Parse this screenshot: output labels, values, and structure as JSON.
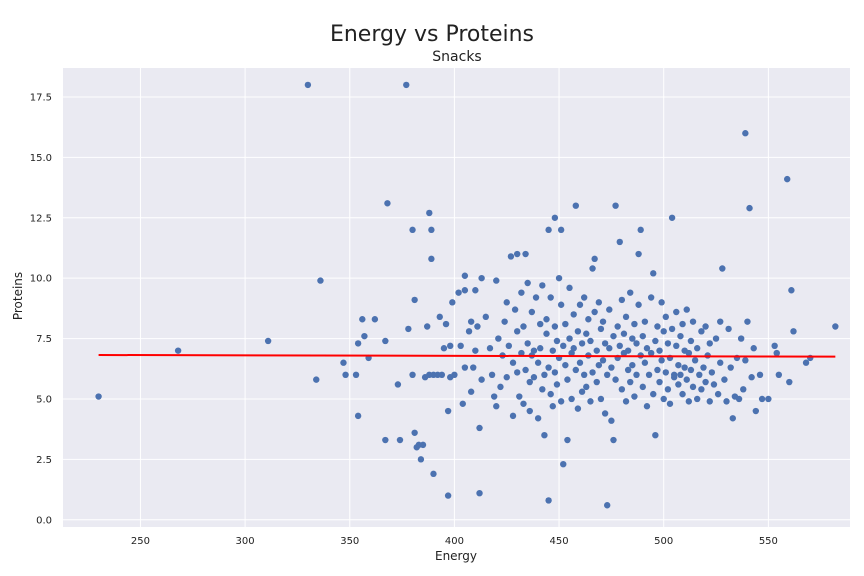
{
  "chart_data": {
    "type": "scatter",
    "title": "Energy vs Proteins",
    "subtitle": "Snacks",
    "xlabel": "Energy",
    "ylabel": "Proteins",
    "xlim": [
      213,
      589
    ],
    "ylim": [
      -0.3,
      18.7
    ],
    "xticks": [
      250,
      300,
      350,
      400,
      450,
      500,
      550
    ],
    "yticks": [
      0.0,
      2.5,
      5.0,
      7.5,
      10.0,
      12.5,
      15.0,
      17.5
    ],
    "xtick_labels": [
      "250",
      "300",
      "350",
      "400",
      "450",
      "500",
      "550"
    ],
    "ytick_labels": [
      "0.0",
      "2.5",
      "5.0",
      "7.5",
      "10.0",
      "12.5",
      "15.0",
      "17.5"
    ],
    "grid": true,
    "background": "#EAEAF2",
    "point_color": "#4C72B0",
    "line_color": "#FF0000",
    "trend_line": {
      "x": [
        230,
        582
      ],
      "y": [
        6.82,
        6.75
      ]
    },
    "points": [
      [
        230,
        5.1
      ],
      [
        268,
        7.0
      ],
      [
        311,
        7.4
      ],
      [
        330,
        18.0
      ],
      [
        334,
        5.8
      ],
      [
        336,
        9.9
      ],
      [
        347,
        6.5
      ],
      [
        348,
        6.0
      ],
      [
        353,
        6.0
      ],
      [
        354,
        4.3
      ],
      [
        354,
        7.3
      ],
      [
        356,
        8.3
      ],
      [
        357,
        7.6
      ],
      [
        359,
        6.7
      ],
      [
        362,
        8.3
      ],
      [
        367,
        7.4
      ],
      [
        367,
        3.3
      ],
      [
        368,
        13.1
      ],
      [
        373,
        5.6
      ],
      [
        374,
        3.3
      ],
      [
        377,
        18.0
      ],
      [
        378,
        7.9
      ],
      [
        380,
        12.0
      ],
      [
        380,
        6.0
      ],
      [
        381,
        9.1
      ],
      [
        381,
        3.6
      ],
      [
        382,
        3.0
      ],
      [
        383,
        3.1
      ],
      [
        384,
        2.5
      ],
      [
        385,
        3.1
      ],
      [
        386,
        5.9
      ],
      [
        387,
        8.0
      ],
      [
        388,
        12.7
      ],
      [
        388,
        6.0
      ],
      [
        389,
        12.0
      ],
      [
        389,
        10.8
      ],
      [
        390,
        1.9
      ],
      [
        390,
        6.0
      ],
      [
        392,
        6.0
      ],
      [
        393,
        8.4
      ],
      [
        394,
        6.0
      ],
      [
        395,
        7.1
      ],
      [
        396,
        8.1
      ],
      [
        397,
        1.0
      ],
      [
        397,
        4.5
      ],
      [
        398,
        5.9
      ],
      [
        398,
        7.2
      ],
      [
        399,
        9.0
      ],
      [
        400,
        6.0
      ],
      [
        402,
        9.4
      ],
      [
        403,
        7.2
      ],
      [
        404,
        4.8
      ],
      [
        405,
        10.1
      ],
      [
        405,
        6.3
      ],
      [
        405,
        9.5
      ],
      [
        407,
        7.8
      ],
      [
        408,
        8.2
      ],
      [
        408,
        5.3
      ],
      [
        409,
        6.3
      ],
      [
        410,
        7.0
      ],
      [
        410,
        9.5
      ],
      [
        411,
        8.0
      ],
      [
        412,
        1.1
      ],
      [
        412,
        3.8
      ],
      [
        413,
        10.0
      ],
      [
        413,
        5.8
      ],
      [
        415,
        8.4
      ],
      [
        417,
        7.1
      ],
      [
        418,
        6.0
      ],
      [
        419,
        5.1
      ],
      [
        420,
        9.9
      ],
      [
        420,
        4.7
      ],
      [
        421,
        7.5
      ],
      [
        422,
        5.5
      ],
      [
        423,
        6.8
      ],
      [
        424,
        8.2
      ],
      [
        425,
        9.0
      ],
      [
        425,
        5.9
      ],
      [
        426,
        7.2
      ],
      [
        427,
        10.9
      ],
      [
        428,
        6.5
      ],
      [
        428,
        4.3
      ],
      [
        429,
        8.7
      ],
      [
        430,
        11.0
      ],
      [
        430,
        6.1
      ],
      [
        430,
        7.8
      ],
      [
        431,
        5.1
      ],
      [
        432,
        9.4
      ],
      [
        432,
        6.9
      ],
      [
        433,
        4.8
      ],
      [
        433,
        8.0
      ],
      [
        434,
        11.0
      ],
      [
        434,
        6.2
      ],
      [
        435,
        7.3
      ],
      [
        435,
        9.8
      ],
      [
        436,
        5.7
      ],
      [
        436,
        4.5
      ],
      [
        437,
        6.8
      ],
      [
        437,
        8.6
      ],
      [
        438,
        7.0
      ],
      [
        438,
        5.9
      ],
      [
        439,
        9.2
      ],
      [
        440,
        6.5
      ],
      [
        440,
        4.2
      ],
      [
        441,
        8.1
      ],
      [
        441,
        7.1
      ],
      [
        442,
        5.4
      ],
      [
        442,
        9.7
      ],
      [
        443,
        6.0
      ],
      [
        443,
        3.5
      ],
      [
        444,
        7.7
      ],
      [
        444,
        8.3
      ],
      [
        445,
        12.0
      ],
      [
        445,
        6.3
      ],
      [
        445,
        0.8
      ],
      [
        446,
        5.2
      ],
      [
        446,
        9.2
      ],
      [
        447,
        7.0
      ],
      [
        447,
        4.7
      ],
      [
        448,
        8.0
      ],
      [
        448,
        6.1
      ],
      [
        448,
        12.5
      ],
      [
        449,
        7.4
      ],
      [
        449,
        5.6
      ],
      [
        450,
        10.0
      ],
      [
        450,
        6.7
      ],
      [
        451,
        8.9
      ],
      [
        451,
        12.0
      ],
      [
        451,
        4.9
      ],
      [
        452,
        7.2
      ],
      [
        452,
        2.3
      ],
      [
        453,
        6.4
      ],
      [
        453,
        8.1
      ],
      [
        454,
        5.8
      ],
      [
        454,
        3.3
      ],
      [
        455,
        7.5
      ],
      [
        455,
        9.6
      ],
      [
        456,
        6.9
      ],
      [
        456,
        5.0
      ],
      [
        457,
        8.5
      ],
      [
        457,
        7.1
      ],
      [
        458,
        13.0
      ],
      [
        458,
        6.2
      ],
      [
        459,
        7.8
      ],
      [
        459,
        4.6
      ],
      [
        460,
        8.9
      ],
      [
        460,
        6.5
      ],
      [
        461,
        5.3
      ],
      [
        461,
        7.3
      ],
      [
        462,
        9.2
      ],
      [
        462,
        6.0
      ],
      [
        463,
        7.7
      ],
      [
        463,
        5.5
      ],
      [
        464,
        8.3
      ],
      [
        464,
        6.8
      ],
      [
        465,
        4.9
      ],
      [
        465,
        7.4
      ],
      [
        466,
        10.4
      ],
      [
        466,
        6.1
      ],
      [
        467,
        10.8
      ],
      [
        467,
        8.6
      ],
      [
        468,
        5.7
      ],
      [
        468,
        7.0
      ],
      [
        469,
        6.4
      ],
      [
        469,
        9.0
      ],
      [
        470,
        7.9
      ],
      [
        470,
        5.0
      ],
      [
        471,
        6.6
      ],
      [
        471,
        8.2
      ],
      [
        472,
        7.3
      ],
      [
        472,
        4.4
      ],
      [
        473,
        6.0
      ],
      [
        473,
        0.6
      ],
      [
        474,
        8.7
      ],
      [
        474,
        7.1
      ],
      [
        475,
        4.1
      ],
      [
        475,
        6.3
      ],
      [
        476,
        7.6
      ],
      [
        476,
        3.3
      ],
      [
        477,
        5.8
      ],
      [
        477,
        13.0
      ],
      [
        478,
        8.0
      ],
      [
        478,
        6.7
      ],
      [
        479,
        11.5
      ],
      [
        479,
        7.2
      ],
      [
        480,
        5.4
      ],
      [
        480,
        9.1
      ],
      [
        481,
        6.9
      ],
      [
        481,
        7.7
      ],
      [
        482,
        4.9
      ],
      [
        482,
        8.4
      ],
      [
        483,
        6.2
      ],
      [
        483,
        7.0
      ],
      [
        484,
        9.4
      ],
      [
        484,
        5.7
      ],
      [
        485,
        7.5
      ],
      [
        485,
        6.4
      ],
      [
        486,
        8.1
      ],
      [
        486,
        5.1
      ],
      [
        487,
        7.3
      ],
      [
        487,
        6.0
      ],
      [
        488,
        11.0
      ],
      [
        488,
        8.9
      ],
      [
        489,
        12.0
      ],
      [
        489,
        6.8
      ],
      [
        490,
        7.6
      ],
      [
        490,
        5.5
      ],
      [
        491,
        6.5
      ],
      [
        491,
        8.2
      ],
      [
        492,
        4.7
      ],
      [
        492,
        7.1
      ],
      [
        493,
        6.0
      ],
      [
        494,
        9.2
      ],
      [
        494,
        6.9
      ],
      [
        495,
        5.2
      ],
      [
        495,
        10.2
      ],
      [
        496,
        7.4
      ],
      [
        496,
        3.5
      ],
      [
        497,
        6.2
      ],
      [
        497,
        8.0
      ],
      [
        498,
        5.7
      ],
      [
        498,
        7.0
      ],
      [
        499,
        6.6
      ],
      [
        499,
        9.0
      ],
      [
        500,
        5.0
      ],
      [
        500,
        7.8
      ],
      [
        501,
        6.1
      ],
      [
        501,
        8.4
      ],
      [
        502,
        5.4
      ],
      [
        502,
        7.3
      ],
      [
        503,
        6.7
      ],
      [
        503,
        4.8
      ],
      [
        504,
        12.5
      ],
      [
        504,
        7.9
      ],
      [
        505,
        6.0
      ],
      [
        505,
        5.9
      ],
      [
        506,
        8.6
      ],
      [
        506,
        7.2
      ],
      [
        507,
        5.6
      ],
      [
        507,
        6.4
      ],
      [
        508,
        7.6
      ],
      [
        508,
        6.0
      ],
      [
        509,
        8.1
      ],
      [
        509,
        5.2
      ],
      [
        510,
        7.0
      ],
      [
        510,
        6.3
      ],
      [
        511,
        8.7
      ],
      [
        511,
        5.8
      ],
      [
        512,
        6.9
      ],
      [
        512,
        4.9
      ],
      [
        513,
        7.4
      ],
      [
        513,
        6.2
      ],
      [
        514,
        5.5
      ],
      [
        514,
        8.2
      ],
      [
        515,
        6.6
      ],
      [
        516,
        7.1
      ],
      [
        516,
        5.0
      ],
      [
        517,
        6.0
      ],
      [
        518,
        7.8
      ],
      [
        518,
        5.4
      ],
      [
        519,
        6.3
      ],
      [
        520,
        8.0
      ],
      [
        520,
        5.7
      ],
      [
        521,
        6.8
      ],
      [
        522,
        4.9
      ],
      [
        522,
        7.3
      ],
      [
        523,
        6.1
      ],
      [
        524,
        5.6
      ],
      [
        525,
        7.5
      ],
      [
        526,
        5.2
      ],
      [
        527,
        6.5
      ],
      [
        527,
        8.2
      ],
      [
        528,
        10.4
      ],
      [
        529,
        5.8
      ],
      [
        530,
        4.9
      ],
      [
        531,
        7.9
      ],
      [
        532,
        6.3
      ],
      [
        533,
        4.2
      ],
      [
        534,
        5.1
      ],
      [
        535,
        6.7
      ],
      [
        536,
        5.0
      ],
      [
        537,
        7.5
      ],
      [
        538,
        5.4
      ],
      [
        539,
        16.0
      ],
      [
        539,
        6.6
      ],
      [
        540,
        8.2
      ],
      [
        541,
        12.9
      ],
      [
        542,
        5.9
      ],
      [
        543,
        7.1
      ],
      [
        544,
        4.5
      ],
      [
        546,
        6.0
      ],
      [
        547,
        5.0
      ],
      [
        550,
        5.0
      ],
      [
        553,
        7.2
      ],
      [
        554,
        6.9
      ],
      [
        555,
        6.0
      ],
      [
        559,
        14.1
      ],
      [
        560,
        5.7
      ],
      [
        561,
        9.5
      ],
      [
        562,
        7.8
      ],
      [
        568,
        6.5
      ],
      [
        570,
        6.7
      ],
      [
        582,
        8.0
      ]
    ]
  }
}
